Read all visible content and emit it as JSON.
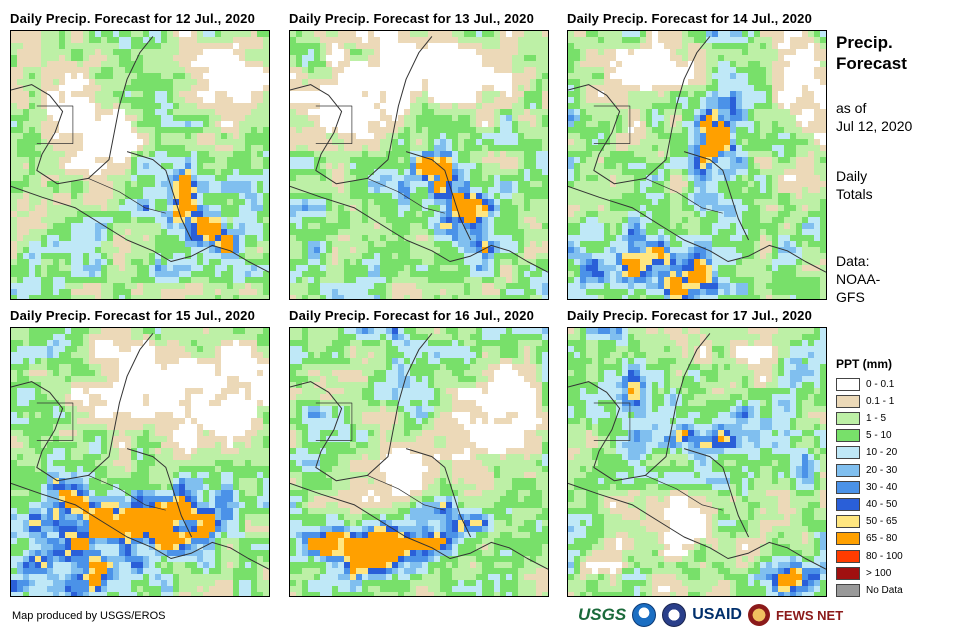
{
  "panels": [
    {
      "title": "Daily Precip. Forecast for 12 Jul., 2020",
      "day": 0
    },
    {
      "title": "Daily Precip. Forecast for 13 Jul., 2020",
      "day": 1
    },
    {
      "title": "Daily Precip. Forecast for 14 Jul., 2020",
      "day": 2
    },
    {
      "title": "Daily Precip. Forecast for 15 Jul., 2020",
      "day": 3
    },
    {
      "title": "Daily Precip. Forecast for 16 Jul., 2020",
      "day": 4
    },
    {
      "title": "Daily Precip. Forecast for 17 Jul., 2020",
      "day": 5
    }
  ],
  "side": {
    "title_line1": "Precip.",
    "title_line2": "Forecast",
    "asof_line1": "as of",
    "asof_line2": "Jul 12, 2020",
    "daily_line1": "Daily",
    "daily_line2": "Totals",
    "source_line1": "Data:",
    "source_line2": "NOAA-",
    "source_line3": "GFS"
  },
  "legend": {
    "title": "PPT (mm)",
    "items": [
      {
        "label": "0 - 0.1",
        "color": "#ffffff"
      },
      {
        "label": "0.1 - 1",
        "color": "#ecd9b8"
      },
      {
        "label": "1 - 5",
        "color": "#bdf0a6"
      },
      {
        "label": "5 - 10",
        "color": "#78e06a"
      },
      {
        "label": "10 - 20",
        "color": "#bfe8f7"
      },
      {
        "label": "20 - 30",
        "color": "#80bfef"
      },
      {
        "label": "30 - 40",
        "color": "#4b92e8"
      },
      {
        "label": "40 - 50",
        "color": "#2a5fd8"
      },
      {
        "label": "50 - 65",
        "color": "#ffe680"
      },
      {
        "label": "65 - 80",
        "color": "#ffa000"
      },
      {
        "label": "80 - 100",
        "color": "#ff3c00"
      },
      {
        "label": "> 100",
        "color": "#a01010"
      },
      {
        "label": "No Data",
        "color": "#999999"
      }
    ]
  },
  "credit": "Map produced by USGS/EROS",
  "logos": {
    "usgs": "USGS",
    "usaid": "USAID",
    "fews": "FEWS NET"
  }
}
